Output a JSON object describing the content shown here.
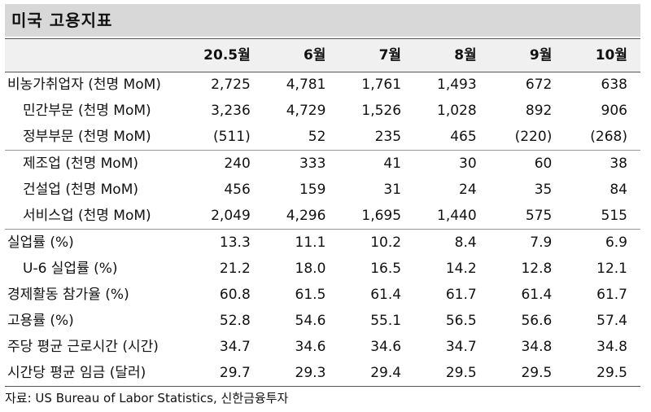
{
  "title": "미국 고용지표",
  "table": {
    "headers": [
      "20.5월",
      "6월",
      "7월",
      "8월",
      "9월",
      "10월"
    ],
    "rows": [
      {
        "label": "비농가취업자 (천명 MoM)",
        "values": [
          "2,725",
          "4,781",
          "1,761",
          "1,493",
          "672",
          "638"
        ]
      },
      {
        "label": "민간부문 (천명 MoM)",
        "values": [
          "3,236",
          "4,729",
          "1,526",
          "1,028",
          "892",
          "906"
        ]
      },
      {
        "label": "정부부문 (천명 MoM)",
        "values": [
          "(511)",
          "52",
          "235",
          "465",
          "(220)",
          "(268)"
        ]
      },
      {
        "label": "제조업 (천명 MoM)",
        "values": [
          "240",
          "333",
          "41",
          "30",
          "60",
          "38"
        ]
      },
      {
        "label": "건설업 (천명 MoM)",
        "values": [
          "456",
          "159",
          "31",
          "24",
          "35",
          "84"
        ]
      },
      {
        "label": "서비스업 (천명 MoM)",
        "values": [
          "2,049",
          "4,296",
          "1,695",
          "1,440",
          "575",
          "515"
        ]
      },
      {
        "label": "실업률 (%)",
        "values": [
          "13.3",
          "11.1",
          "10.2",
          "8.4",
          "7.9",
          "6.9"
        ]
      },
      {
        "label": "U-6 실업률 (%)",
        "values": [
          "21.2",
          "18.0",
          "16.5",
          "14.2",
          "12.8",
          "12.1"
        ]
      },
      {
        "label": "경제활동 참가율 (%)",
        "values": [
          "60.8",
          "61.5",
          "61.4",
          "61.7",
          "61.4",
          "61.7"
        ]
      },
      {
        "label": "고용률 (%)",
        "values": [
          "52.8",
          "54.6",
          "55.1",
          "56.5",
          "56.6",
          "57.4"
        ]
      },
      {
        "label": "주당 평균 근로시간 (시간)",
        "values": [
          "34.7",
          "34.6",
          "34.6",
          "34.7",
          "34.8",
          "34.8"
        ]
      },
      {
        "label": "시간당 평균 임금 (달러)",
        "values": [
          "29.7",
          "29.3",
          "29.4",
          "29.5",
          "29.5",
          "29.5"
        ]
      }
    ]
  },
  "source": "자료: US Bureau of Labor Statistics, 신한금융투자"
}
